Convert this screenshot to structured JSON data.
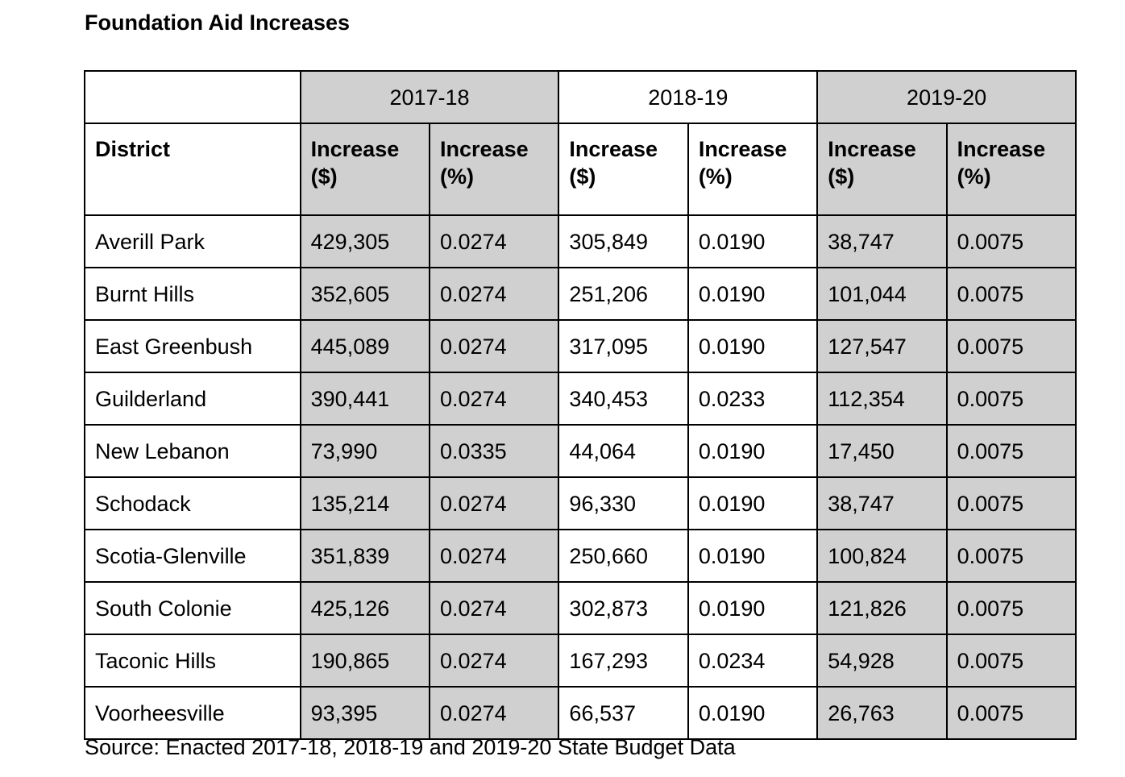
{
  "title": "Foundation Aid Increases",
  "table": {
    "district_header": "District",
    "years": [
      "2017-18",
      "2018-19",
      "2019-20"
    ],
    "col_dollar": "Increase ($)",
    "col_pct": "Increase (%)",
    "rows": [
      {
        "district": "Averill Park",
        "v": [
          "429,305",
          "0.0274",
          "305,849",
          "0.0190",
          "38,747",
          "0.0075"
        ]
      },
      {
        "district": "Burnt Hills",
        "v": [
          "352,605",
          "0.0274",
          "251,206",
          "0.0190",
          "101,044",
          "0.0075"
        ]
      },
      {
        "district": "East Greenbush",
        "v": [
          "445,089",
          "0.0274",
          "317,095",
          "0.0190",
          "127,547",
          "0.0075"
        ]
      },
      {
        "district": "Guilderland",
        "v": [
          "390,441",
          "0.0274",
          "340,453",
          "0.0233",
          "112,354",
          "0.0075"
        ]
      },
      {
        "district": "New Lebanon",
        "v": [
          "73,990",
          "0.0335",
          "44,064",
          "0.0190",
          "17,450",
          "0.0075"
        ]
      },
      {
        "district": "Schodack",
        "v": [
          "135,214",
          "0.0274",
          "96,330",
          "0.0190",
          "38,747",
          "0.0075"
        ]
      },
      {
        "district": "Scotia-Glenville",
        "v": [
          "351,839",
          "0.0274",
          "250,660",
          "0.0190",
          "100,824",
          "0.0075"
        ]
      },
      {
        "district": "South Colonie",
        "v": [
          "425,126",
          "0.0274",
          "302,873",
          "0.0190",
          "121,826",
          "0.0075"
        ]
      },
      {
        "district": "Taconic Hills",
        "v": [
          "190,865",
          "0.0274",
          "167,293",
          "0.0234",
          "54,928",
          "0.0075"
        ]
      },
      {
        "district": "Voorheesville",
        "v": [
          "93,395",
          "0.0274",
          "66,537",
          "0.0190",
          "26,763",
          "0.0075"
        ]
      }
    ]
  },
  "source": "Source: Enacted 2017-18, 2018-19 and 2019-20 State Budget Data",
  "colors": {
    "shade": "#d0d0d0",
    "border": "#000000"
  }
}
